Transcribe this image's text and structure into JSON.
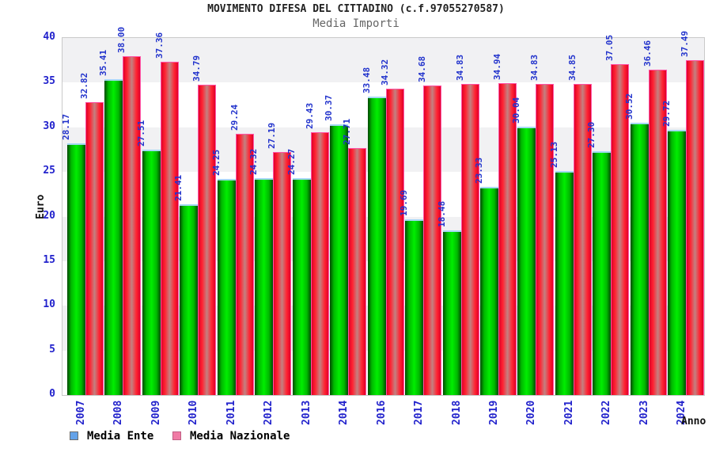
{
  "chart_data": {
    "type": "bar",
    "title": "MOVIMENTO DIFESA DEL CITTADINO (c.f.97055270587)",
    "subtitle": "Media Importi",
    "ylabel": "Euro",
    "xlabel": "Anno",
    "ylim": [
      0,
      40
    ],
    "yticks": [
      0,
      5,
      10,
      15,
      20,
      25,
      30,
      35,
      40
    ],
    "grid": "alternating horizontal bands every 5 units",
    "legend_position": "bottom-left",
    "categories": [
      "2007",
      "2008",
      "2009",
      "2010",
      "2011",
      "2012",
      "2013",
      "2014",
      "2016",
      "2017",
      "2018",
      "2019",
      "2020",
      "2021",
      "2022",
      "2023",
      "2024"
    ],
    "series": [
      {
        "name": "Media Ente",
        "values": [
          28.17,
          35.41,
          27.51,
          21.41,
          24.25,
          24.32,
          24.27,
          30.37,
          33.48,
          19.69,
          18.48,
          23.33,
          30.04,
          25.13,
          27.3,
          30.52,
          29.72
        ],
        "legend_swatch": "#64a2e8",
        "legend_swatch_border": "#6d6d6d",
        "bar_edge_color": "#004800",
        "bar_mid_color": "#00b800",
        "bar_center_color": "#00ee00",
        "bar_border": "#a6d8f5"
      },
      {
        "name": "Media Nazionale",
        "values": [
          32.82,
          38.0,
          37.36,
          34.79,
          29.24,
          27.19,
          29.43,
          27.71,
          34.32,
          34.68,
          34.83,
          34.94,
          34.83,
          34.85,
          37.05,
          36.46,
          37.49
        ],
        "legend_swatch": "#f07ba5",
        "legend_swatch_border": "#c05f84",
        "bar_edge_color": "#e00028",
        "bar_mid_color": "#ff2433",
        "bar_center_color": "#c38181",
        "bar_border": "#ff55a8"
      }
    ],
    "band_colors": [
      "#f1f1f3",
      "#ffffff"
    ],
    "value_label_color": "#2233cc",
    "tick_label_color": "#2222cc"
  }
}
